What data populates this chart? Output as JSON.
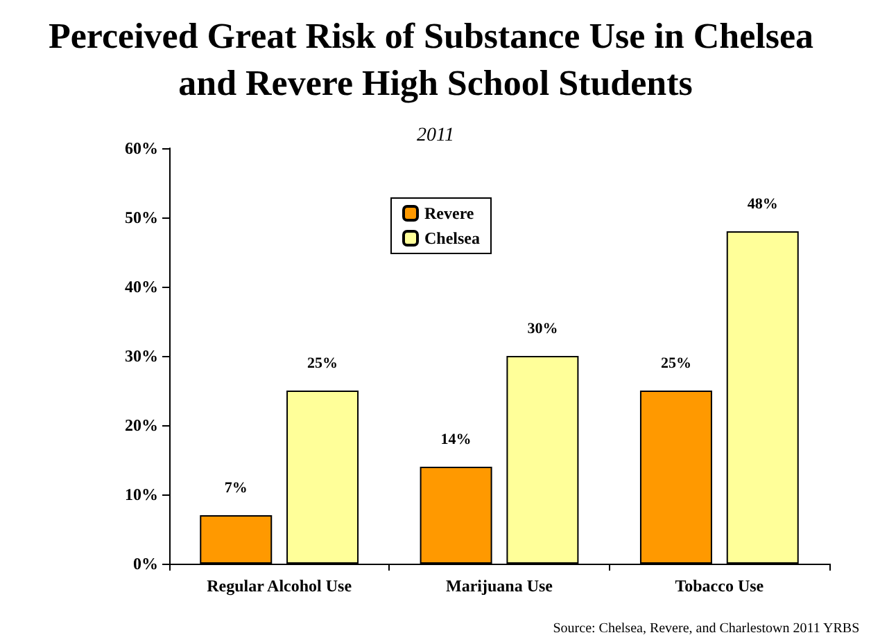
{
  "chart_data": {
    "type": "bar",
    "title": "Perceived Great Risk of Substance Use in Chelsea and Revere High School Students",
    "subtitle": "2011",
    "categories": [
      "Regular Alcohol Use",
      "Marijuana Use",
      "Tobacco Use"
    ],
    "series": [
      {
        "name": "Revere",
        "color": "#ff9900",
        "values": [
          7,
          14,
          25
        ],
        "value_labels": [
          "7%",
          "14%",
          "25%"
        ]
      },
      {
        "name": "Chelsea",
        "color": "#ffff99",
        "values": [
          25,
          30,
          48
        ],
        "value_labels": [
          "25%",
          "30%",
          "48%"
        ]
      }
    ],
    "ylim": [
      0,
      60
    ],
    "yticks": [
      {
        "value": 0,
        "label": "0%"
      },
      {
        "value": 10,
        "label": "10%"
      },
      {
        "value": 20,
        "label": "20%"
      },
      {
        "value": 30,
        "label": "30%"
      },
      {
        "value": 40,
        "label": "40%"
      },
      {
        "value": 50,
        "label": "50%"
      },
      {
        "value": 60,
        "label": "60%"
      }
    ],
    "grid": false,
    "legend": "top",
    "annotations": [
      "Source: Chelsea, Revere, and Charlestown 2011 YRBS"
    ]
  }
}
